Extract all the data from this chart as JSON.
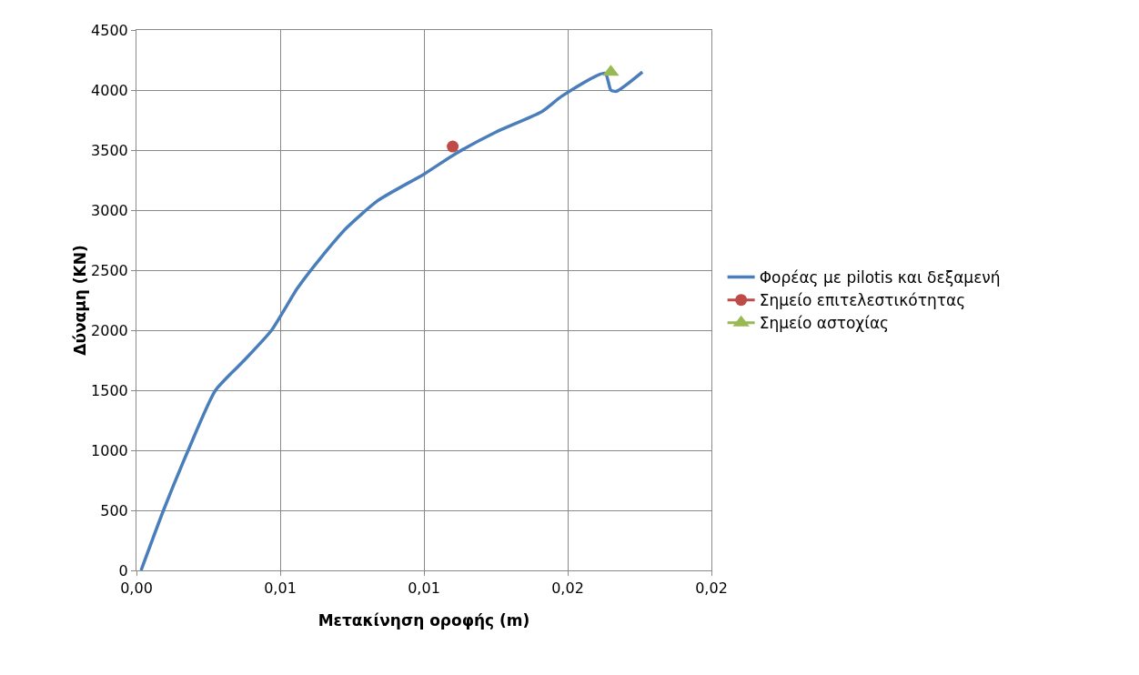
{
  "chart_data": {
    "type": "line",
    "xlabel": "Μετακίνηση οροφής (m)",
    "ylabel": "Δύναμη (KN)",
    "xlim": [
      0,
      0.02
    ],
    "xticks": [
      {
        "value": 0,
        "label": "0,00"
      },
      {
        "value": 0.005,
        "label": "0,01"
      },
      {
        "value": 0.01,
        "label": "0,01"
      },
      {
        "value": 0.015,
        "label": "0,02"
      },
      {
        "value": 0.02,
        "label": "0,02"
      }
    ],
    "ylim": [
      0,
      4500
    ],
    "yticks": [
      0,
      500,
      1000,
      1500,
      2000,
      2500,
      3000,
      3500,
      4000,
      4500
    ],
    "grid": true,
    "legend": "right",
    "series": [
      {
        "name": "Φορέας με pilotis και δεξαμενή",
        "type": "line",
        "marker": "none",
        "color": "#4a7ebb",
        "x": [
          0.00016,
          0.00094,
          0.0018,
          0.00275,
          0.00375,
          0.0047,
          0.0056,
          0.0064,
          0.0073,
          0.0084,
          0.01,
          0.0111,
          0.0125,
          0.0141,
          0.0148,
          0.0163,
          0.0165,
          0.0167,
          0.0176
        ],
        "values": [
          0,
          500,
          1000,
          1500,
          1750,
          2000,
          2350,
          2600,
          2850,
          3080,
          3300,
          3470,
          3650,
          3820,
          3950,
          4140,
          4000,
          3990,
          4150
        ]
      },
      {
        "name": "Σημείο επιτελεστικότητας",
        "type": "scatter",
        "marker": "circle",
        "color": "#be4b48",
        "x": [
          0.011
        ],
        "values": [
          3530
        ]
      },
      {
        "name": "Σημείο αστοχίας",
        "type": "scatter",
        "marker": "triangle",
        "color": "#98b954",
        "x": [
          0.0165
        ],
        "values": [
          4150
        ]
      }
    ]
  }
}
